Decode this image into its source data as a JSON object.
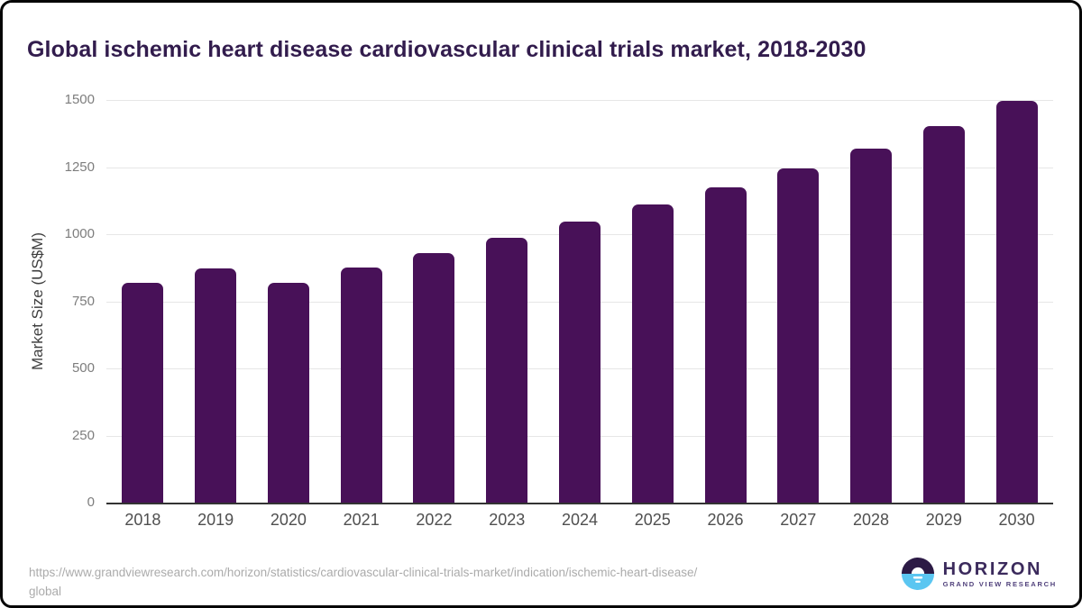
{
  "title": "Global ischemic heart disease cardiovascular clinical trials market, 2018-2030",
  "chart_data": {
    "type": "bar",
    "title": "Global ischemic heart disease cardiovascular clinical trials market, 2018-2030",
    "xlabel": "",
    "ylabel": "Market Size (US$M)",
    "categories": [
      "2018",
      "2019",
      "2020",
      "2021",
      "2022",
      "2023",
      "2024",
      "2025",
      "2026",
      "2027",
      "2028",
      "2029",
      "2030"
    ],
    "values": [
      820,
      872,
      818,
      877,
      928,
      988,
      1046,
      1110,
      1176,
      1244,
      1319,
      1402,
      1497
    ],
    "ylim": [
      0,
      1500
    ],
    "yticks": [
      0,
      250,
      500,
      750,
      1000,
      1250,
      1500
    ],
    "grid": "horizontal",
    "legend": "none"
  },
  "colors": {
    "bar": "#481158",
    "title": "#321c4d",
    "gridline": "#e6e6e6",
    "axis_line": "#333333",
    "y_tick_text": "#7d7d7d",
    "x_tick_text": "#4f4f4f",
    "source_text": "#ababab"
  },
  "source": {
    "url_line1": "https://www.grandviewresearch.com/horizon/statistics/cardiovascular-clinical-trials-market/indication/ischemic-heart-disease/",
    "url_line2": "global"
  },
  "branding": {
    "name": "HORIZON",
    "subtitle": "GRAND VIEW RESEARCH",
    "logo_top_color": "#2c1a45",
    "logo_bottom_color": "#5bc6f1",
    "logo_accent_color": "#ffffff"
  }
}
